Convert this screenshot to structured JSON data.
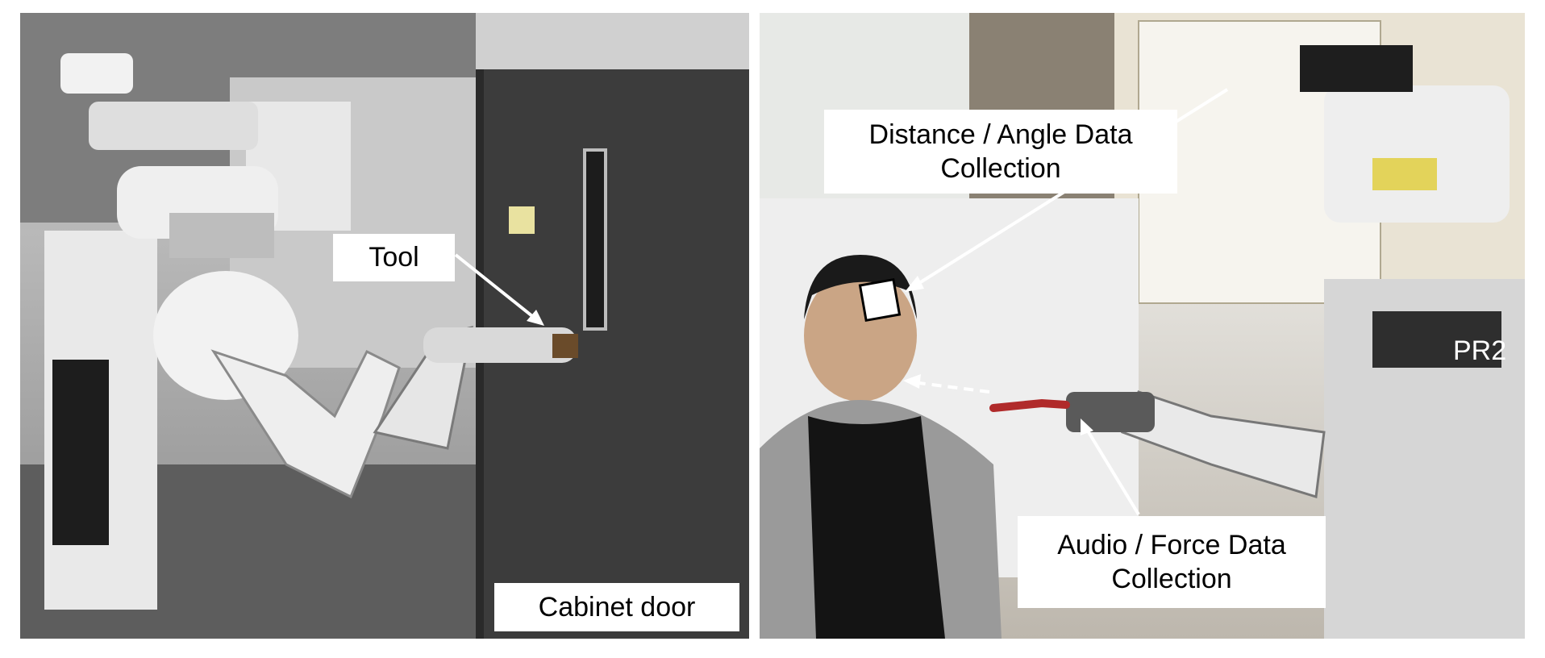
{
  "left_panel": {
    "labels": {
      "tool": "Tool",
      "cabinet_door": "Cabinet door"
    }
  },
  "right_panel": {
    "labels": {
      "distance_angle": "Distance / Angle Data Collection",
      "audio_force": "Audio / Force Data Collection",
      "robot_tag": "PR2"
    }
  },
  "colors": {
    "robot_white": "#eeeeee",
    "robot_gray": "#6e6e6e",
    "cabinet": "#3c3c3c",
    "arrow": "#ffffff"
  }
}
